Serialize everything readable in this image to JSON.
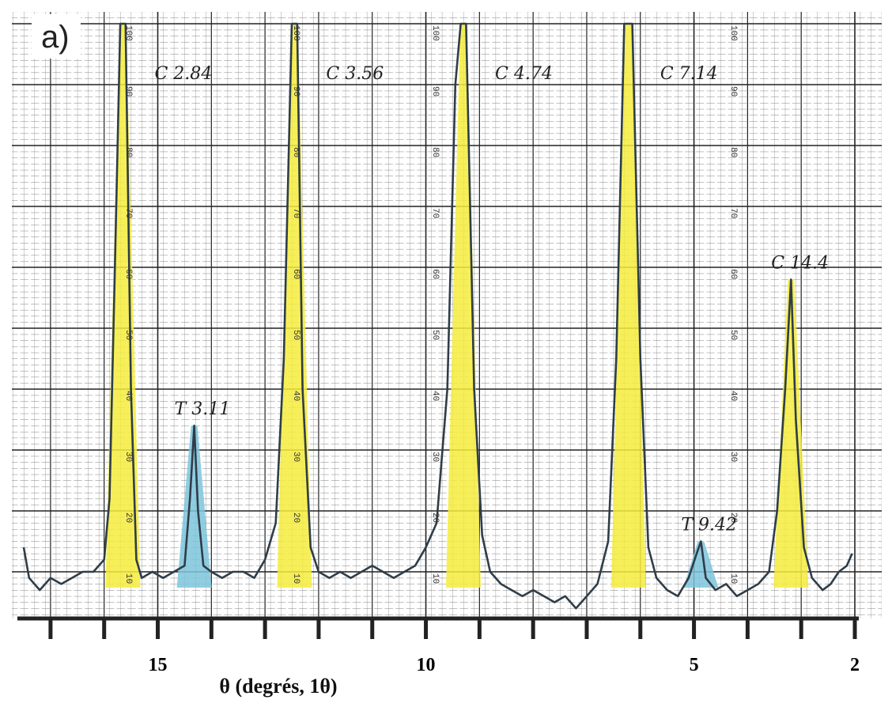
{
  "chart_data": {
    "type": "line",
    "panel_label": "a)",
    "x_label": "θ (degrés, 1θ)",
    "xlim": [
      17.5,
      2
    ],
    "xticks": [
      15,
      10,
      5,
      2
    ],
    "xminorticks": [
      17,
      16,
      14,
      13,
      12,
      11,
      9,
      8,
      7,
      6,
      4,
      3
    ],
    "ylim": [
      0,
      100
    ],
    "yticks": [
      10,
      20,
      30,
      40,
      50,
      60,
      70,
      80,
      90,
      100
    ],
    "grid": true,
    "x": [
      17.5,
      17.4,
      17.2,
      17.0,
      16.8,
      16.6,
      16.4,
      16.2,
      16.0,
      15.9,
      15.8,
      15.7,
      15.6,
      15.5,
      15.4,
      15.3,
      15.1,
      14.9,
      14.7,
      14.5,
      14.4,
      14.32,
      14.25,
      14.15,
      14.0,
      13.8,
      13.6,
      13.4,
      13.2,
      13.0,
      12.8,
      12.65,
      12.5,
      12.4,
      12.3,
      12.15,
      12.0,
      11.8,
      11.6,
      11.4,
      11.2,
      11.0,
      10.8,
      10.6,
      10.4,
      10.2,
      10.0,
      9.8,
      9.6,
      9.45,
      9.35,
      9.25,
      9.1,
      8.95,
      8.8,
      8.6,
      8.4,
      8.2,
      8.0,
      7.8,
      7.6,
      7.4,
      7.2,
      7.0,
      6.8,
      6.6,
      6.45,
      6.3,
      6.15,
      6.0,
      5.85,
      5.7,
      5.5,
      5.3,
      5.1,
      4.95,
      4.87,
      4.78,
      4.6,
      4.4,
      4.2,
      4.0,
      3.8,
      3.6,
      3.45,
      3.3,
      3.19,
      3.1,
      2.95,
      2.8,
      2.6,
      2.45,
      2.3,
      2.15,
      2.05
    ],
    "series": [
      {
        "color": "#2f3d48",
        "values": [
          14,
          9,
          7,
          9,
          8,
          9,
          10,
          10,
          12,
          22,
          60,
          100,
          100,
          40,
          12,
          9,
          10,
          9,
          10,
          11,
          22,
          34,
          20,
          11,
          10,
          9,
          10,
          10,
          9,
          12,
          18,
          45,
          100,
          100,
          40,
          14,
          10,
          9,
          10,
          9,
          10,
          11,
          10,
          9,
          10,
          11,
          14,
          18,
          40,
          90,
          100,
          100,
          40,
          16,
          10,
          8,
          7,
          6,
          7,
          6,
          5,
          6,
          4,
          6,
          8,
          15,
          45,
          100,
          100,
          45,
          14,
          9,
          7,
          6,
          9,
          13,
          15,
          9,
          7,
          8,
          6,
          7,
          8,
          10,
          20,
          40,
          58,
          35,
          14,
          9,
          7,
          8,
          10,
          11,
          13
        ]
      }
    ],
    "peaks": [
      {
        "label": "C 2.84",
        "x": 15.65,
        "height": 100,
        "color": "#f4ec3c"
      },
      {
        "label": "T 3.11",
        "x": 14.32,
        "height": 34,
        "color": "#7cc4dc"
      },
      {
        "label": "C 3.56",
        "x": 12.45,
        "height": 100,
        "color": "#f4ec3c"
      },
      {
        "label": "C 4.74",
        "x": 9.3,
        "height": 100,
        "color": "#f4ec3c"
      },
      {
        "label": "C 7.14",
        "x": 6.22,
        "height": 100,
        "color": "#f4ec3c"
      },
      {
        "label": "T 9.42",
        "x": 4.87,
        "height": 15,
        "color": "#7cc4dc"
      },
      {
        "label": "C 14.4",
        "x": 3.19,
        "height": 58,
        "color": "#f4ec3c"
      }
    ]
  }
}
